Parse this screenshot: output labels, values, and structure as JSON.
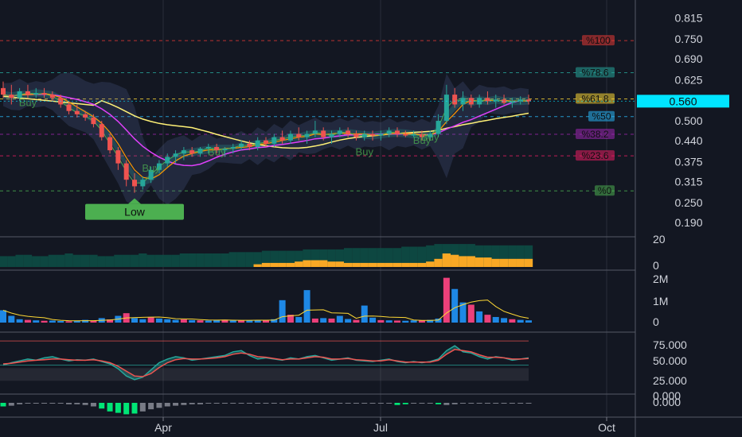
{
  "chart_data": [
    {
      "type": "candlestick",
      "panel": "price",
      "x_labels": [
        "Apr",
        "Jul",
        "Oct"
      ],
      "y_ticks": [
        "0.815",
        "0.750",
        "0.690",
        "0.625",
        "0.560",
        "0.500",
        "0.440",
        "0.375",
        "0.315",
        "0.250",
        "0.190"
      ],
      "ylim": [
        0.17,
        0.84
      ],
      "last_price": "0.560",
      "last_price_value": 0.56,
      "colors": {
        "up": "#26a69a",
        "down": "#ef5350",
        "price_label_bg": "#00e5ff"
      },
      "fib_levels": [
        {
          "label": "%100",
          "value": 0.745,
          "color": "#e53935",
          "tag_x_offset": 0
        },
        {
          "label": "%78.6",
          "value": 0.647,
          "color": "#26a69a",
          "tag_x_offset": 0
        },
        {
          "label": "%61.8",
          "value": 0.567,
          "color": "#fdd835",
          "tag_x_offset": 0
        },
        {
          "label": "%50",
          "value": 0.513,
          "color": "#29b6f6",
          "tag_x_offset": 0
        },
        {
          "label": "%38.2",
          "value": 0.459,
          "color": "#9c27b0",
          "tag_x_offset": 0
        },
        {
          "label": "%23.6",
          "value": 0.393,
          "color": "#e91e63",
          "tag_x_offset": 0
        },
        {
          "label": "%0",
          "value": 0.286,
          "color": "#4caf50",
          "tag_x_offset": 0
        }
      ],
      "annotations": [
        {
          "label": "Low",
          "type": "label-up"
        },
        {
          "label": "Buy",
          "type": "signal"
        }
      ],
      "candles": [
        [
          0.6,
          0.62,
          0.57,
          0.58
        ],
        [
          0.58,
          0.61,
          0.55,
          0.57
        ],
        [
          0.57,
          0.6,
          0.56,
          0.59
        ],
        [
          0.59,
          0.61,
          0.57,
          0.58
        ],
        [
          0.58,
          0.6,
          0.57,
          0.585
        ],
        [
          0.585,
          0.6,
          0.57,
          0.58
        ],
        [
          0.58,
          0.59,
          0.56,
          0.57
        ],
        [
          0.57,
          0.58,
          0.54,
          0.55
        ],
        [
          0.55,
          0.56,
          0.52,
          0.53
        ],
        [
          0.53,
          0.55,
          0.51,
          0.52
        ],
        [
          0.52,
          0.53,
          0.5,
          0.51
        ],
        [
          0.51,
          0.52,
          0.48,
          0.49
        ],
        [
          0.49,
          0.5,
          0.44,
          0.45
        ],
        [
          0.45,
          0.46,
          0.4,
          0.41
        ],
        [
          0.41,
          0.42,
          0.35,
          0.37
        ],
        [
          0.37,
          0.38,
          0.3,
          0.32
        ],
        [
          0.32,
          0.34,
          0.28,
          0.3
        ],
        [
          0.3,
          0.33,
          0.29,
          0.32
        ],
        [
          0.32,
          0.36,
          0.31,
          0.35
        ],
        [
          0.35,
          0.38,
          0.34,
          0.37
        ],
        [
          0.37,
          0.4,
          0.36,
          0.39
        ],
        [
          0.39,
          0.41,
          0.37,
          0.4
        ],
        [
          0.4,
          0.42,
          0.38,
          0.41
        ],
        [
          0.41,
          0.42,
          0.39,
          0.4
        ],
        [
          0.4,
          0.42,
          0.39,
          0.415
        ],
        [
          0.415,
          0.43,
          0.4,
          0.42
        ],
        [
          0.42,
          0.43,
          0.4,
          0.41
        ],
        [
          0.41,
          0.42,
          0.39,
          0.415
        ],
        [
          0.415,
          0.43,
          0.4,
          0.42
        ],
        [
          0.42,
          0.44,
          0.41,
          0.43
        ],
        [
          0.43,
          0.44,
          0.41,
          0.42
        ],
        [
          0.42,
          0.45,
          0.41,
          0.44
        ],
        [
          0.44,
          0.45,
          0.42,
          0.43
        ],
        [
          0.43,
          0.46,
          0.42,
          0.45
        ],
        [
          0.45,
          0.47,
          0.43,
          0.44
        ],
        [
          0.44,
          0.47,
          0.43,
          0.46
        ],
        [
          0.46,
          0.48,
          0.44,
          0.45
        ],
        [
          0.45,
          0.47,
          0.43,
          0.46
        ],
        [
          0.46,
          0.5,
          0.45,
          0.47
        ],
        [
          0.47,
          0.48,
          0.44,
          0.45
        ],
        [
          0.45,
          0.47,
          0.43,
          0.46
        ],
        [
          0.46,
          0.48,
          0.45,
          0.47
        ],
        [
          0.47,
          0.48,
          0.45,
          0.46
        ],
        [
          0.46,
          0.47,
          0.44,
          0.45
        ],
        [
          0.45,
          0.47,
          0.44,
          0.46
        ],
        [
          0.46,
          0.47,
          0.44,
          0.455
        ],
        [
          0.455,
          0.47,
          0.44,
          0.46
        ],
        [
          0.46,
          0.48,
          0.45,
          0.47
        ],
        [
          0.47,
          0.48,
          0.45,
          0.46
        ],
        [
          0.46,
          0.47,
          0.45,
          0.455
        ],
        [
          0.455,
          0.47,
          0.45,
          0.46
        ],
        [
          0.46,
          0.47,
          0.44,
          0.45
        ],
        [
          0.45,
          0.47,
          0.44,
          0.46
        ],
        [
          0.46,
          0.52,
          0.45,
          0.5
        ],
        [
          0.5,
          0.61,
          0.49,
          0.58
        ],
        [
          0.58,
          0.6,
          0.54,
          0.55
        ],
        [
          0.55,
          0.59,
          0.53,
          0.57
        ],
        [
          0.57,
          0.58,
          0.54,
          0.55
        ],
        [
          0.55,
          0.58,
          0.54,
          0.57
        ],
        [
          0.57,
          0.59,
          0.55,
          0.56
        ],
        [
          0.56,
          0.58,
          0.54,
          0.565
        ],
        [
          0.565,
          0.58,
          0.55,
          0.555
        ],
        [
          0.555,
          0.57,
          0.54,
          0.56
        ],
        [
          0.56,
          0.575,
          0.55,
          0.565
        ],
        [
          0.565,
          0.58,
          0.55,
          0.56
        ]
      ]
    },
    {
      "type": "area",
      "panel": "oscillator",
      "y_ticks": [
        "20",
        "0"
      ],
      "ylim": [
        0,
        20
      ],
      "series": [
        {
          "name": "",
          "color": "#0d4d45",
          "values": [
            8,
            8,
            9,
            9,
            8,
            8,
            9,
            9,
            10,
            9,
            9,
            9,
            8,
            8,
            9,
            9,
            9,
            10,
            9,
            9,
            9,
            9,
            10,
            10,
            10,
            10,
            10,
            10,
            11,
            11,
            11,
            11,
            12,
            12,
            12,
            12,
            12,
            13,
            13,
            13,
            13,
            13,
            14,
            14,
            14,
            14,
            14,
            14,
            14,
            15,
            15,
            15,
            16,
            17,
            17,
            17,
            17,
            17,
            16,
            16,
            16,
            16,
            16,
            16,
            16
          ]
        },
        {
          "name": "",
          "color": "#f9a825",
          "values": [
            0,
            0,
            0,
            0,
            0,
            0,
            0,
            0,
            0,
            0,
            0,
            0,
            0,
            0,
            0,
            0,
            0,
            0,
            0,
            0,
            0,
            0,
            0,
            0,
            0,
            0,
            0,
            0,
            0,
            0,
            0,
            2,
            3,
            3,
            3,
            3,
            4,
            5,
            5,
            5,
            4,
            4,
            3,
            3,
            3,
            3,
            3,
            3,
            3,
            3,
            3,
            3,
            4,
            6,
            10,
            9,
            8,
            8,
            7,
            7,
            6,
            6,
            6,
            6,
            6
          ]
        }
      ]
    },
    {
      "type": "bar",
      "panel": "volume",
      "y_ticks": [
        "2M",
        "1M",
        "0"
      ],
      "ylim": [
        0,
        2200000
      ],
      "colors": {
        "up": "#1e88e5",
        "down": "#ec407a",
        "ma": "#fdd835"
      },
      "values": [
        550000,
        300000,
        150000,
        120000,
        100000,
        80000,
        90000,
        70000,
        60000,
        90000,
        120000,
        80000,
        200000,
        140000,
        300000,
        420000,
        200000,
        150000,
        250000,
        180000,
        150000,
        120000,
        140000,
        110000,
        100000,
        90000,
        110000,
        130000,
        90000,
        100000,
        90000,
        110000,
        120000,
        150000,
        1000000,
        350000,
        250000,
        1450000,
        180000,
        200000,
        180000,
        300000,
        160000,
        120000,
        760000,
        220000,
        110000,
        100000,
        90000,
        80000,
        100000,
        90000,
        120000,
        180000,
        2000000,
        1500000,
        900000,
        800000,
        500000,
        350000,
        250000,
        200000,
        150000,
        120000,
        100000
      ],
      "directions": [
        "u",
        "u",
        "u",
        "d",
        "u",
        "d",
        "u",
        "u",
        "d",
        "u",
        "u",
        "d",
        "u",
        "d",
        "u",
        "d",
        "u",
        "u",
        "d",
        "u",
        "u",
        "u",
        "d",
        "u",
        "d",
        "u",
        "u",
        "d",
        "u",
        "d",
        "u",
        "u",
        "d",
        "u",
        "u",
        "d",
        "u",
        "u",
        "d",
        "u",
        "d",
        "u",
        "u",
        "d",
        "u",
        "u",
        "d",
        "u",
        "d",
        "u",
        "u",
        "d",
        "u",
        "u",
        "d",
        "u",
        "u",
        "d",
        "u",
        "d",
        "u",
        "u",
        "d",
        "u",
        "u"
      ]
    },
    {
      "type": "line",
      "panel": "rsi",
      "y_ticks": [
        "75.000",
        "50.000",
        "25.000",
        "0.000"
      ],
      "ylim": [
        0,
        100
      ],
      "series": [
        {
          "name": "",
          "color": "#26a69a",
          "values": [
            48,
            52,
            55,
            58,
            56,
            60,
            62,
            58,
            55,
            57,
            56,
            58,
            54,
            50,
            42,
            30,
            24,
            28,
            40,
            52,
            58,
            62,
            60,
            56,
            58,
            60,
            62,
            64,
            70,
            72,
            64,
            58,
            60,
            58,
            56,
            60,
            58,
            62,
            64,
            60,
            56,
            58,
            60,
            56,
            55,
            54,
            56,
            58,
            54,
            52,
            54,
            52,
            54,
            58,
            72,
            80,
            70,
            68,
            62,
            58,
            62,
            60,
            56,
            58,
            60
          ]
        },
        {
          "name": "",
          "color": "#ef5350",
          "values": [
            50,
            51,
            53,
            55,
            56,
            57,
            58,
            58,
            57,
            56,
            56,
            57,
            55,
            52,
            46,
            38,
            30,
            29,
            34,
            44,
            52,
            57,
            59,
            58,
            58,
            59,
            60,
            62,
            66,
            68,
            66,
            62,
            61,
            59,
            57,
            58,
            58,
            60,
            62,
            61,
            58,
            58,
            59,
            57,
            56,
            55,
            55,
            57,
            55,
            53,
            53,
            53,
            53,
            56,
            66,
            74,
            72,
            70,
            65,
            61,
            61,
            60,
            58,
            58,
            59
          ]
        }
      ],
      "levels": [
        {
          "value": 70,
          "color": "#ef5350"
        },
        {
          "value": 30,
          "color": "#26a69a"
        }
      ]
    },
    {
      "type": "bar",
      "panel": "histogram",
      "y_ticks": [
        "0.000",
        "0.000"
      ],
      "colors": {
        "up": "#00e676",
        "down": "#787b86"
      },
      "values": [
        -5,
        -4,
        -2,
        -1,
        -1,
        -1,
        -1,
        -1,
        -2,
        -2,
        -3,
        -5,
        -8,
        -12,
        -14,
        -16,
        -15,
        -12,
        -9,
        -7,
        -5,
        -4,
        -3,
        -2,
        -2,
        -1,
        -1,
        -1,
        0,
        -1,
        -1,
        0,
        0,
        -1,
        0,
        0,
        -1,
        0,
        0,
        0,
        0,
        -1,
        0,
        0,
        0,
        0,
        0,
        -1,
        -3,
        -2,
        -1,
        -1,
        0,
        -2,
        -3,
        -2,
        -1,
        -1,
        0,
        0,
        -1,
        0,
        0,
        0,
        0
      ],
      "bright": [
        true,
        false,
        false,
        false,
        false,
        false,
        false,
        false,
        false,
        false,
        false,
        false,
        true,
        true,
        true,
        true,
        true,
        false,
        false,
        false,
        false,
        false,
        false,
        false,
        false,
        false,
        false,
        false,
        false,
        false,
        false,
        false,
        false,
        false,
        false,
        false,
        false,
        false,
        false,
        false,
        false,
        false,
        false,
        false,
        false,
        false,
        false,
        false,
        true,
        true,
        false,
        false,
        false,
        true,
        false,
        false,
        false,
        false,
        false,
        false,
        false,
        false,
        false,
        false,
        false
      ]
    }
  ]
}
